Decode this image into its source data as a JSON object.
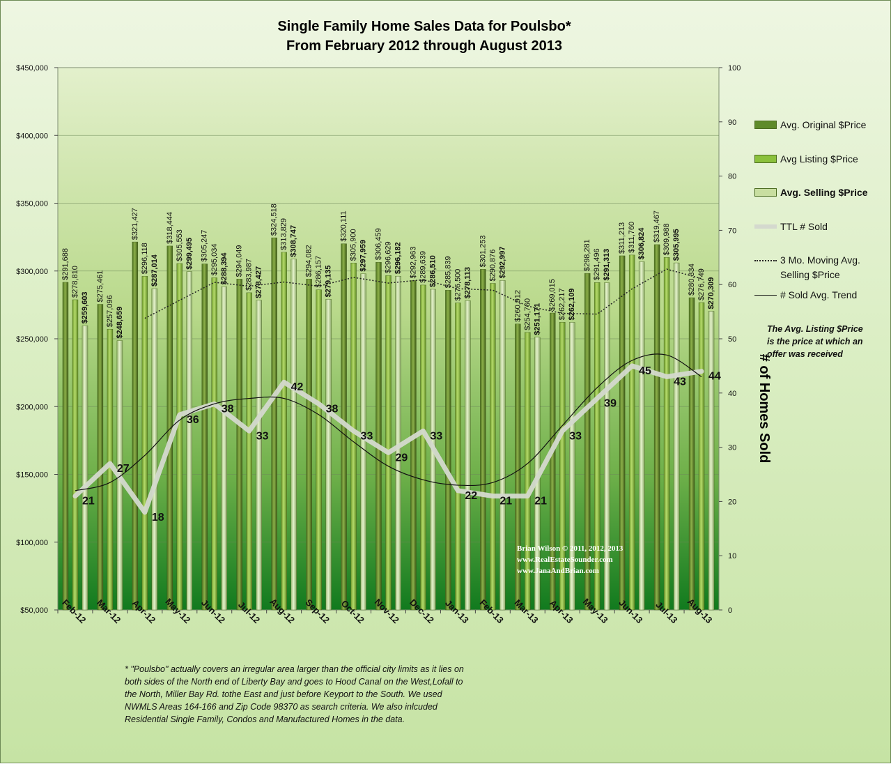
{
  "title_line1": "Single Family Home Sales Data for Poulsbo*",
  "title_line2": "From February 2012  through August 2013",
  "right_axis_title": "# of Homes Sold",
  "side_note": "The Avg. Listing $Price is the price at which an offer was received",
  "footnote": "* \"Poulsbo\"  actually covers an irregular area larger than the official city limits  as it lies on both sides of the North end of Liberty Bay and goes to Hood Canal on the West,Lofall to the North, Miller Bay Rd. tothe East and just before Keyport to the South.  We used NWMLS Areas 164-166  and Zip Code 98370  as search criteria.  We also inlcuded Residential Single Family, Condos and Manufactured Homes in the data.",
  "credit": [
    "Brian Wilson  © 2011, 2012, 2013",
    "www.RealEstateSounder.com",
    "www.JanaAndBrian.com"
  ],
  "legend": [
    {
      "label": "Avg. Original $Price",
      "kind": "bar",
      "color": "#5e8a2a",
      "bold": false
    },
    {
      "label": "Avg Listing $Price",
      "kind": "bar",
      "color": "#8bc13c",
      "bold": false
    },
    {
      "label": "Avg. Selling $Price",
      "kind": "bar",
      "color": "#c8dea0",
      "bold": true
    },
    {
      "label": "TTL # Sold",
      "kind": "thick",
      "color": "#d4d9ce",
      "bold": false
    },
    {
      "label": "3 Mo. Moving Avg. Selling $Price",
      "kind": "dotted",
      "color": "#222222",
      "bold": false
    },
    {
      "label": "# Sold Avg. Trend",
      "kind": "line",
      "color": "#111111",
      "bold": false
    }
  ],
  "chart_data": {
    "type": "bar",
    "categories": [
      "Feb-12",
      "Mar-12",
      "Apr-12",
      "May-12",
      "Jun-12",
      "Jul-12",
      "Aug-12",
      "Sep-12",
      "Oct-12",
      "Nov-12",
      "Dec-12",
      "Jan-13",
      "Feb-13",
      "Mar-13",
      "Apr-13",
      "May-13",
      "Jun-13",
      "Jul-13",
      "Aug-13"
    ],
    "series": [
      {
        "name": "Avg. Original $Price",
        "axis": "left",
        "values": [
          291688,
          275461,
          321427,
          318444,
          305247,
          294049,
          324518,
          294082,
          320111,
          306459,
          292963,
          285839,
          301253,
          260912,
          269015,
          298281,
          311213,
          319467,
          280334
        ],
        "labels": [
          "$291,688",
          "$275,461",
          "$321,427",
          "$318,444",
          "$305,247",
          "$294,049",
          "$324,518",
          "$294,082",
          "$320,111",
          "$306,459",
          "$292,963",
          "$285,839",
          "$301,253",
          "$260,912",
          "$269,015",
          "$298,281",
          "$311,213",
          "$319,467",
          "$280,334"
        ]
      },
      {
        "name": "Avg Listing $Price",
        "axis": "left",
        "values": [
          278810,
          257096,
          296118,
          305553,
          295034,
          283987,
          313829,
          286157,
          305900,
          296629,
          289639,
          276500,
          290876,
          254760,
          262217,
          291496,
          311760,
          309988,
          276749
        ],
        "labels": [
          "$278,810",
          "$257,096",
          "$296,118",
          "$305,553",
          "$295,034",
          "$283,987",
          "$313,829",
          "$286,157",
          "$305,900",
          "$296,629",
          "$289,639",
          "$276,500",
          "$290,876",
          "$254,760",
          "$262,217",
          "$291,496",
          "$311,760",
          "$309,988",
          "$276,749"
        ]
      },
      {
        "name": "Avg. Selling $Price",
        "axis": "left",
        "values": [
          259603,
          248659,
          287014,
          299495,
          288394,
          278427,
          308747,
          279135,
          297959,
          296182,
          286510,
          278113,
          292997,
          251171,
          262109,
          291313,
          306824,
          305995,
          270309
        ],
        "labels": [
          "$259,603",
          "$248,659",
          "$287,014",
          "$299,495",
          "$288,394",
          "$278,427",
          "$308,747",
          "$279,135",
          "$297,959",
          "$296,182",
          "$286,510",
          "$278,113",
          "$292,997",
          "$251,171",
          "$262,109",
          "$291,313",
          "$306,824",
          "$305,995",
          "$270,309"
        ]
      },
      {
        "name": "TTL # Sold",
        "axis": "right",
        "values": [
          21,
          27,
          18,
          36,
          38,
          33,
          42,
          38,
          33,
          29,
          33,
          22,
          21,
          21,
          33,
          39,
          45,
          43,
          44
        ],
        "labels": [
          "21",
          "27",
          "18",
          "36",
          "38",
          "33",
          "42",
          "38",
          "33",
          "29",
          "33",
          "22",
          "21",
          "21",
          "33",
          "39",
          "45",
          "43",
          "44"
        ]
      },
      {
        "name": "3 Mo. Moving Avg. Selling $Price",
        "axis": "left",
        "values": [
          null,
          null,
          265092,
          278389,
          291634,
          288772,
          291856,
          288770,
          295280,
          291092,
          293550,
          286935,
          285873,
          274094,
          268759,
          268198,
          286749,
          301377,
          294376
        ]
      },
      {
        "name": "# Sold Avg. Trend",
        "axis": "right",
        "values": [
          22.0,
          23.5,
          28.5,
          35.0,
          38.0,
          39.0,
          39.0,
          36.0,
          31.0,
          26.5,
          24.0,
          23.0,
          23.5,
          27.0,
          34.0,
          41.0,
          46.0,
          47.0,
          43.0
        ]
      }
    ],
    "left_axis": {
      "min": 50000,
      "max": 450000,
      "step": 50000,
      "tick_labels": [
        "$50,000",
        "$100,000",
        "$150,000",
        "$200,000",
        "$250,000",
        "$300,000",
        "$350,000",
        "$400,000",
        "$450,000"
      ]
    },
    "right_axis": {
      "min": 0,
      "max": 100,
      "step": 10,
      "tick_labels": [
        "0",
        "10",
        "20",
        "30",
        "40",
        "50",
        "60",
        "70",
        "80",
        "90",
        "100"
      ]
    },
    "grid": true,
    "legend_position": "right"
  }
}
